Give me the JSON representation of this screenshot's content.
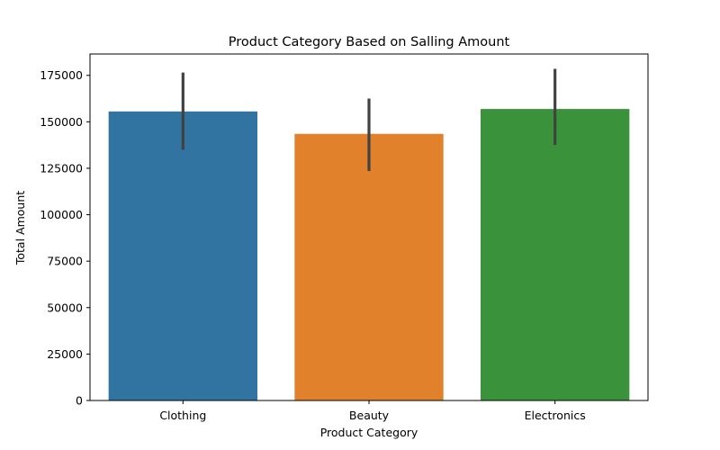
{
  "chart_data": {
    "type": "bar",
    "title": "Product Category Based on Salling Amount",
    "xlabel": "Product Category",
    "ylabel": "Total Amount",
    "categories": [
      "Clothing",
      "Beauty",
      "Electronics"
    ],
    "values": [
      155580,
      143515,
      156905
    ],
    "error_bars": [
      [
        135000,
        176500
      ],
      [
        123500,
        162500
      ],
      [
        137500,
        178500
      ]
    ],
    "colors": [
      "#3274a1",
      "#e1812c",
      "#3a923a"
    ],
    "error_color": "#424242",
    "yticks": [
      0,
      25000,
      50000,
      75000,
      100000,
      125000,
      150000,
      175000
    ],
    "ylim": [
      0,
      186500
    ],
    "grid": false
  }
}
